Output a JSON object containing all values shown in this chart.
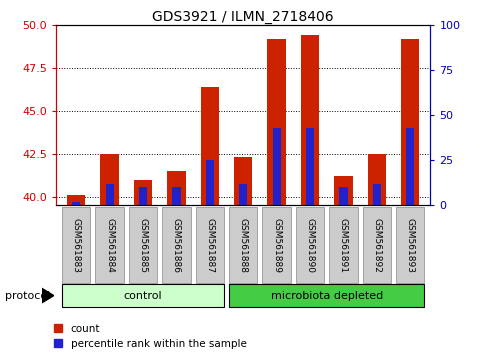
{
  "title": "GDS3921 / ILMN_2718406",
  "samples": [
    "GSM561883",
    "GSM561884",
    "GSM561885",
    "GSM561886",
    "GSM561887",
    "GSM561888",
    "GSM561889",
    "GSM561890",
    "GSM561891",
    "GSM561892",
    "GSM561893"
  ],
  "count_values": [
    40.1,
    42.5,
    41.0,
    41.5,
    46.4,
    42.3,
    49.2,
    49.4,
    41.2,
    42.5,
    49.2
  ],
  "percentile_values": [
    2,
    12,
    10,
    10,
    25,
    12,
    43,
    43,
    10,
    12,
    43
  ],
  "ylim_left": [
    39.5,
    50
  ],
  "ylim_right": [
    0,
    100
  ],
  "yticks_left": [
    40,
    42.5,
    45,
    47.5,
    50
  ],
  "yticks_right": [
    0,
    25,
    50,
    75,
    100
  ],
  "bar_color_red": "#cc2200",
  "bar_color_blue": "#2222cc",
  "bar_width": 0.55,
  "blue_bar_width": 0.25,
  "control_color": "#ccffcc",
  "microbiota_color": "#44cc44",
  "legend_items": [
    {
      "label": "count",
      "color": "#cc2200"
    },
    {
      "label": "percentile rank within the sample",
      "color": "#2222cc"
    }
  ],
  "tick_color_left": "#cc0000",
  "tick_color_right": "#0000bb",
  "label_bg_color": "#cccccc",
  "label_bg_edge": "#888888"
}
